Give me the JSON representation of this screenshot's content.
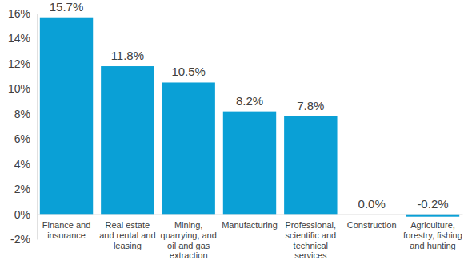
{
  "chart_data": {
    "type": "bar",
    "categories": [
      "Finance and insurance",
      "Real estate and rental and leasing",
      "Mining, quarrying, and oil and gas extraction",
      "Manufacturing",
      "Professional, scientific and technical services",
      "Construction",
      "Agriculture, forestry, fishing and hunting"
    ],
    "values": [
      15.7,
      11.8,
      10.5,
      8.2,
      7.8,
      0.0,
      -0.2
    ],
    "value_labels": [
      "15.7%",
      "11.8%",
      "10.5%",
      "8.2%",
      "7.8%",
      "0.0%",
      "-0.2%"
    ],
    "color": "#0aa0d6",
    "ylim": [
      -2,
      16
    ],
    "yticks": [
      {
        "value": -2,
        "label": "-2%"
      },
      {
        "value": 0,
        "label": "0%"
      },
      {
        "value": 2,
        "label": "2%"
      },
      {
        "value": 4,
        "label": "4%"
      },
      {
        "value": 6,
        "label": "6%"
      },
      {
        "value": 8,
        "label": "8%"
      },
      {
        "value": 10,
        "label": "10%"
      },
      {
        "value": 12,
        "label": "12%"
      },
      {
        "value": 14,
        "label": "14%"
      },
      {
        "value": 16,
        "label": "16%"
      }
    ],
    "grid": false,
    "data_labels": true
  }
}
